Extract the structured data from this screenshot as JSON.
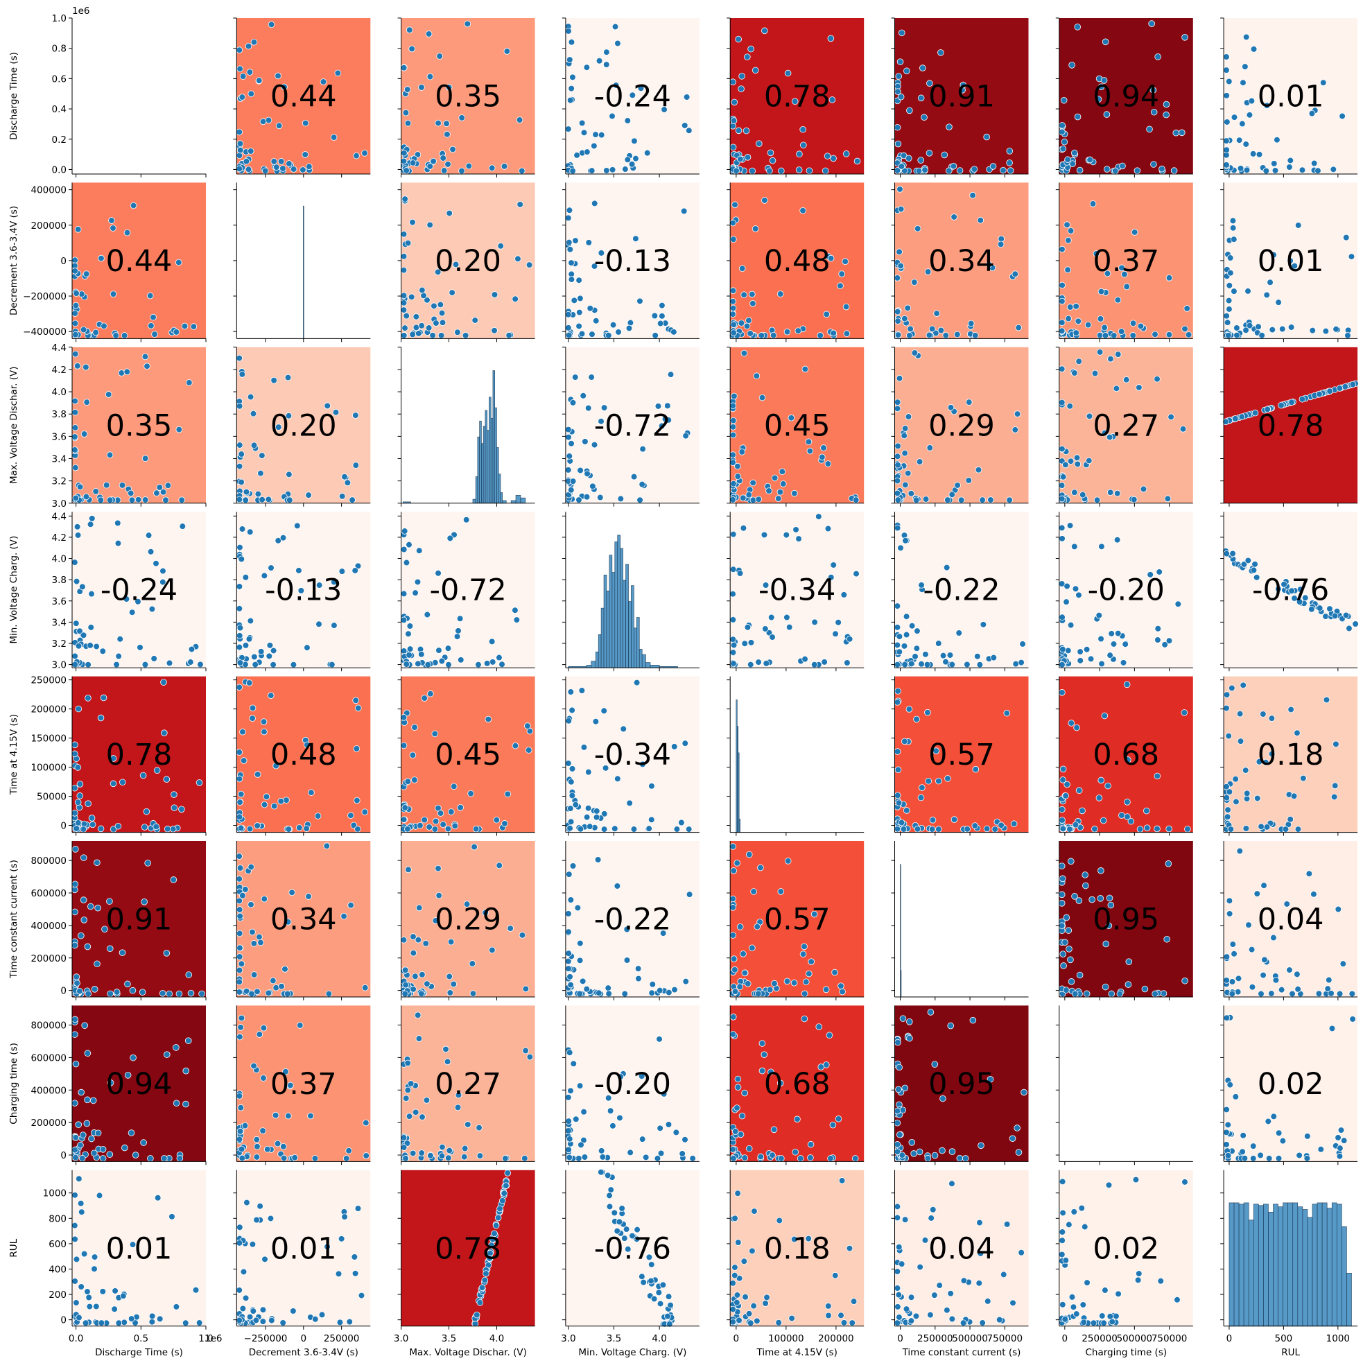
{
  "chart_data": {
    "type": "scatter",
    "subtype": "pairplot-correlation-matrix",
    "title": "",
    "variables": [
      "Discharge Time (s)",
      "Decrement 3.6-3.4V (s)",
      "Max. Voltage Dischar. (V)",
      "Min. Voltage Charg. (V)",
      "Time at 4.15V (s)",
      "Time constant current (s)",
      "Charging time (s)",
      "RUL"
    ],
    "correlation_matrix": [
      [
        null,
        0.44,
        0.35,
        -0.24,
        0.78,
        0.91,
        0.94,
        0.01
      ],
      [
        0.44,
        null,
        0.2,
        -0.13,
        0.48,
        0.34,
        0.37,
        0.01
      ],
      [
        0.35,
        0.2,
        null,
        -0.72,
        0.45,
        0.29,
        0.27,
        0.78
      ],
      [
        -0.24,
        -0.13,
        -0.72,
        null,
        -0.34,
        -0.22,
        -0.2,
        -0.76
      ],
      [
        0.78,
        0.48,
        0.45,
        -0.34,
        null,
        0.57,
        0.68,
        0.18
      ],
      [
        0.91,
        0.34,
        0.29,
        -0.22,
        0.57,
        null,
        0.95,
        0.04
      ],
      [
        0.94,
        0.37,
        0.27,
        -0.2,
        0.68,
        0.95,
        null,
        0.02
      ],
      [
        0.01,
        0.01,
        0.78,
        -0.76,
        0.18,
        0.04,
        0.02,
        null
      ]
    ],
    "correlation_labels": [
      [
        "",
        "0.44",
        "0.35",
        "-0.24",
        "0.78",
        "0.91",
        "0.94",
        "0.01"
      ],
      [
        "0.44",
        "",
        "0.20",
        "-0.13",
        "0.48",
        "0.34",
        "0.37",
        "0.01"
      ],
      [
        "0.35",
        "0.20",
        "",
        "-0.72",
        "0.45",
        "0.29",
        "0.27",
        "0.78"
      ],
      [
        "-0.24",
        "-0.13",
        "-0.72",
        "",
        "-0.34",
        "-0.22",
        "-0.20",
        "-0.76"
      ],
      [
        "0.78",
        "0.48",
        "0.45",
        "-0.34",
        "",
        "0.57",
        "0.68",
        "0.18"
      ],
      [
        "0.91",
        "0.34",
        "0.29",
        "-0.22",
        "0.57",
        "",
        "0.95",
        "0.04"
      ],
      [
        "0.94",
        "0.37",
        "0.27",
        "-0.20",
        "0.68",
        "0.95",
        "",
        "0.02"
      ],
      [
        "0.01",
        "0.01",
        "0.78",
        "-0.76",
        "0.18",
        "0.04",
        "0.02",
        ""
      ]
    ],
    "colormap": "Reds",
    "colormap_stops": [
      "#fff5f0",
      "#fee0d2",
      "#fcbba1",
      "#fc9272",
      "#fb6a4a",
      "#ef3b2c",
      "#cb181d",
      "#a50f15",
      "#67000d"
    ],
    "point_color": "#1f77b4",
    "point_edge_color": "#ffffff",
    "hist_color": "#1f77b4",
    "axes": [
      {
        "lim": [
          -0.03,
          1.0
        ],
        "ticks": [
          0.0,
          0.2,
          0.4,
          0.6,
          0.8,
          1.0
        ],
        "ticklabels": [
          "0.0",
          "0.2",
          "0.4",
          "0.6",
          "0.8",
          "1.0"
        ],
        "xticks": [
          0.0,
          0.5,
          1.0
        ],
        "xticklabels": [
          "0.0",
          "0.5",
          "1.0"
        ],
        "offset_text": "1e6"
      },
      {
        "lim": [
          -440000,
          440000
        ],
        "ticks": [
          -400000,
          -200000,
          0,
          200000,
          400000
        ],
        "ticklabels": [
          "−400000",
          "−200000",
          "0",
          "200000",
          "400000"
        ],
        "xticks": [
          -250000,
          0,
          250000
        ],
        "xticklabels": [
          "−250000",
          "0",
          "250000"
        ]
      },
      {
        "lim": [
          3.0,
          4.4
        ],
        "ticks": [
          3.0,
          3.2,
          3.4,
          3.6,
          3.8,
          4.0,
          4.2,
          4.4
        ],
        "ticklabels": [
          "3.0",
          "3.2",
          "3.4",
          "3.6",
          "3.8",
          "4.0",
          "4.2",
          "4.4"
        ],
        "xticks": [
          3.0,
          3.5,
          4.0
        ],
        "xticklabels": [
          "3.0",
          "3.5",
          "4.0"
        ]
      },
      {
        "lim": [
          2.97,
          4.44
        ],
        "ticks": [
          3.0,
          3.2,
          3.4,
          3.6,
          3.8,
          4.0,
          4.2,
          4.4
        ],
        "ticklabels": [
          "3.0",
          "3.2",
          "3.4",
          "3.6",
          "3.8",
          "4.0",
          "4.2",
          "4.4"
        ],
        "xticks": [
          3.0,
          3.5,
          4.0
        ],
        "xticklabels": [
          "3.0",
          "3.5",
          "4.0"
        ]
      },
      {
        "lim": [
          -12000,
          256000
        ],
        "ticks": [
          0,
          50000,
          100000,
          150000,
          200000,
          250000
        ],
        "ticklabels": [
          "0",
          "50000",
          "100000",
          "150000",
          "200000",
          "250000"
        ],
        "xticks": [
          0,
          100000,
          200000
        ],
        "xticklabels": [
          "0",
          "100000",
          "200000"
        ]
      },
      {
        "lim": [
          -40000,
          920000
        ],
        "ticks": [
          0,
          200000,
          400000,
          600000,
          800000
        ],
        "ticklabels": [
          "0",
          "200000",
          "400000",
          "600000",
          "800000"
        ],
        "xticks": [
          0,
          250000,
          500000,
          750000
        ],
        "xticklabels": [
          "0",
          "250000",
          "500000",
          "750000"
        ]
      },
      {
        "lim": [
          -40000,
          920000
        ],
        "ticks": [
          0,
          200000,
          400000,
          600000,
          800000
        ],
        "ticklabels": [
          "0",
          "200000",
          "400000",
          "600000",
          "800000"
        ],
        "xticks": [
          0,
          250000,
          500000,
          750000
        ],
        "xticklabels": [
          "0",
          "250000",
          "500000",
          "750000"
        ]
      },
      {
        "lim": [
          -50,
          1180
        ],
        "ticks": [
          0,
          200,
          400,
          600,
          800,
          1000
        ],
        "ticklabels": [
          "0",
          "200",
          "400",
          "600",
          "800",
          "1000"
        ],
        "xticks": [
          0,
          500,
          1000
        ],
        "xticklabels": [
          "0",
          "500",
          "1000"
        ]
      }
    ],
    "diagonal": [
      {
        "kind": "hist",
        "bins": [],
        "counts": []
      },
      {
        "kind": "hist",
        "bins": [
          -2000,
          2000
        ],
        "counts": [
          1
        ]
      },
      {
        "kind": "hist",
        "bins": [
          3.02,
          3.1,
          3.15,
          3.2,
          3.25,
          3.3,
          3.35,
          3.4,
          3.45,
          3.5,
          3.55,
          3.6,
          3.65,
          3.7,
          3.75,
          3.78,
          3.8,
          3.82,
          3.84,
          3.86,
          3.88,
          3.9,
          3.92,
          3.94,
          3.96,
          3.98,
          4.0,
          4.02,
          4.04,
          4.06,
          4.1,
          4.15,
          4.2,
          4.25,
          4.3
        ],
        "counts": [
          0.01,
          0,
          0,
          0,
          0,
          0,
          0,
          0,
          0,
          0,
          0,
          0,
          0,
          0,
          0.03,
          0.2,
          0.5,
          0.62,
          0.45,
          0.58,
          0.7,
          0.55,
          0.8,
          0.64,
          1.0,
          0.72,
          0.42,
          0.22,
          0.08,
          0.02,
          0,
          0.02,
          0.06,
          0.04
        ]
      },
      {
        "kind": "hist",
        "bins": [
          3.0,
          3.2,
          3.25,
          3.3,
          3.33,
          3.36,
          3.39,
          3.42,
          3.45,
          3.48,
          3.51,
          3.54,
          3.57,
          3.6,
          3.63,
          3.66,
          3.69,
          3.72,
          3.75,
          3.78,
          3.81,
          3.85,
          3.9,
          4.0,
          4.2
        ],
        "counts": [
          0.01,
          0.02,
          0.05,
          0.12,
          0.25,
          0.45,
          0.7,
          0.58,
          0.85,
          0.72,
          0.95,
          1.0,
          0.9,
          0.66,
          0.78,
          0.5,
          0.62,
          0.3,
          0.38,
          0.14,
          0.1,
          0.04,
          0.02,
          0.01
        ]
      },
      {
        "kind": "hist",
        "bins": [
          0,
          2000,
          4000,
          6000,
          8000
        ],
        "counts": [
          1.0,
          0.8,
          0.6,
          0.1
        ]
      },
      {
        "kind": "hist",
        "bins": [
          0,
          3000,
          6000
        ],
        "counts": [
          1.0,
          0.2
        ]
      },
      {
        "kind": "hist",
        "bins": [],
        "counts": []
      },
      {
        "kind": "hist",
        "bins": [
          0,
          45,
          90,
          135,
          180,
          225,
          270,
          315,
          360,
          405,
          450,
          495,
          540,
          585,
          630,
          675,
          720,
          765,
          810,
          855,
          900,
          945,
          990,
          1035,
          1080,
          1125
        ],
        "counts": [
          0.93,
          0.93,
          0.92,
          0.93,
          0.8,
          0.92,
          0.91,
          0.92,
          0.86,
          0.92,
          0.9,
          0.93,
          0.93,
          0.93,
          0.9,
          0.88,
          0.82,
          0.92,
          0.93,
          0.93,
          0.89,
          0.93,
          0.92,
          0.75,
          0.4
        ]
      }
    ]
  }
}
